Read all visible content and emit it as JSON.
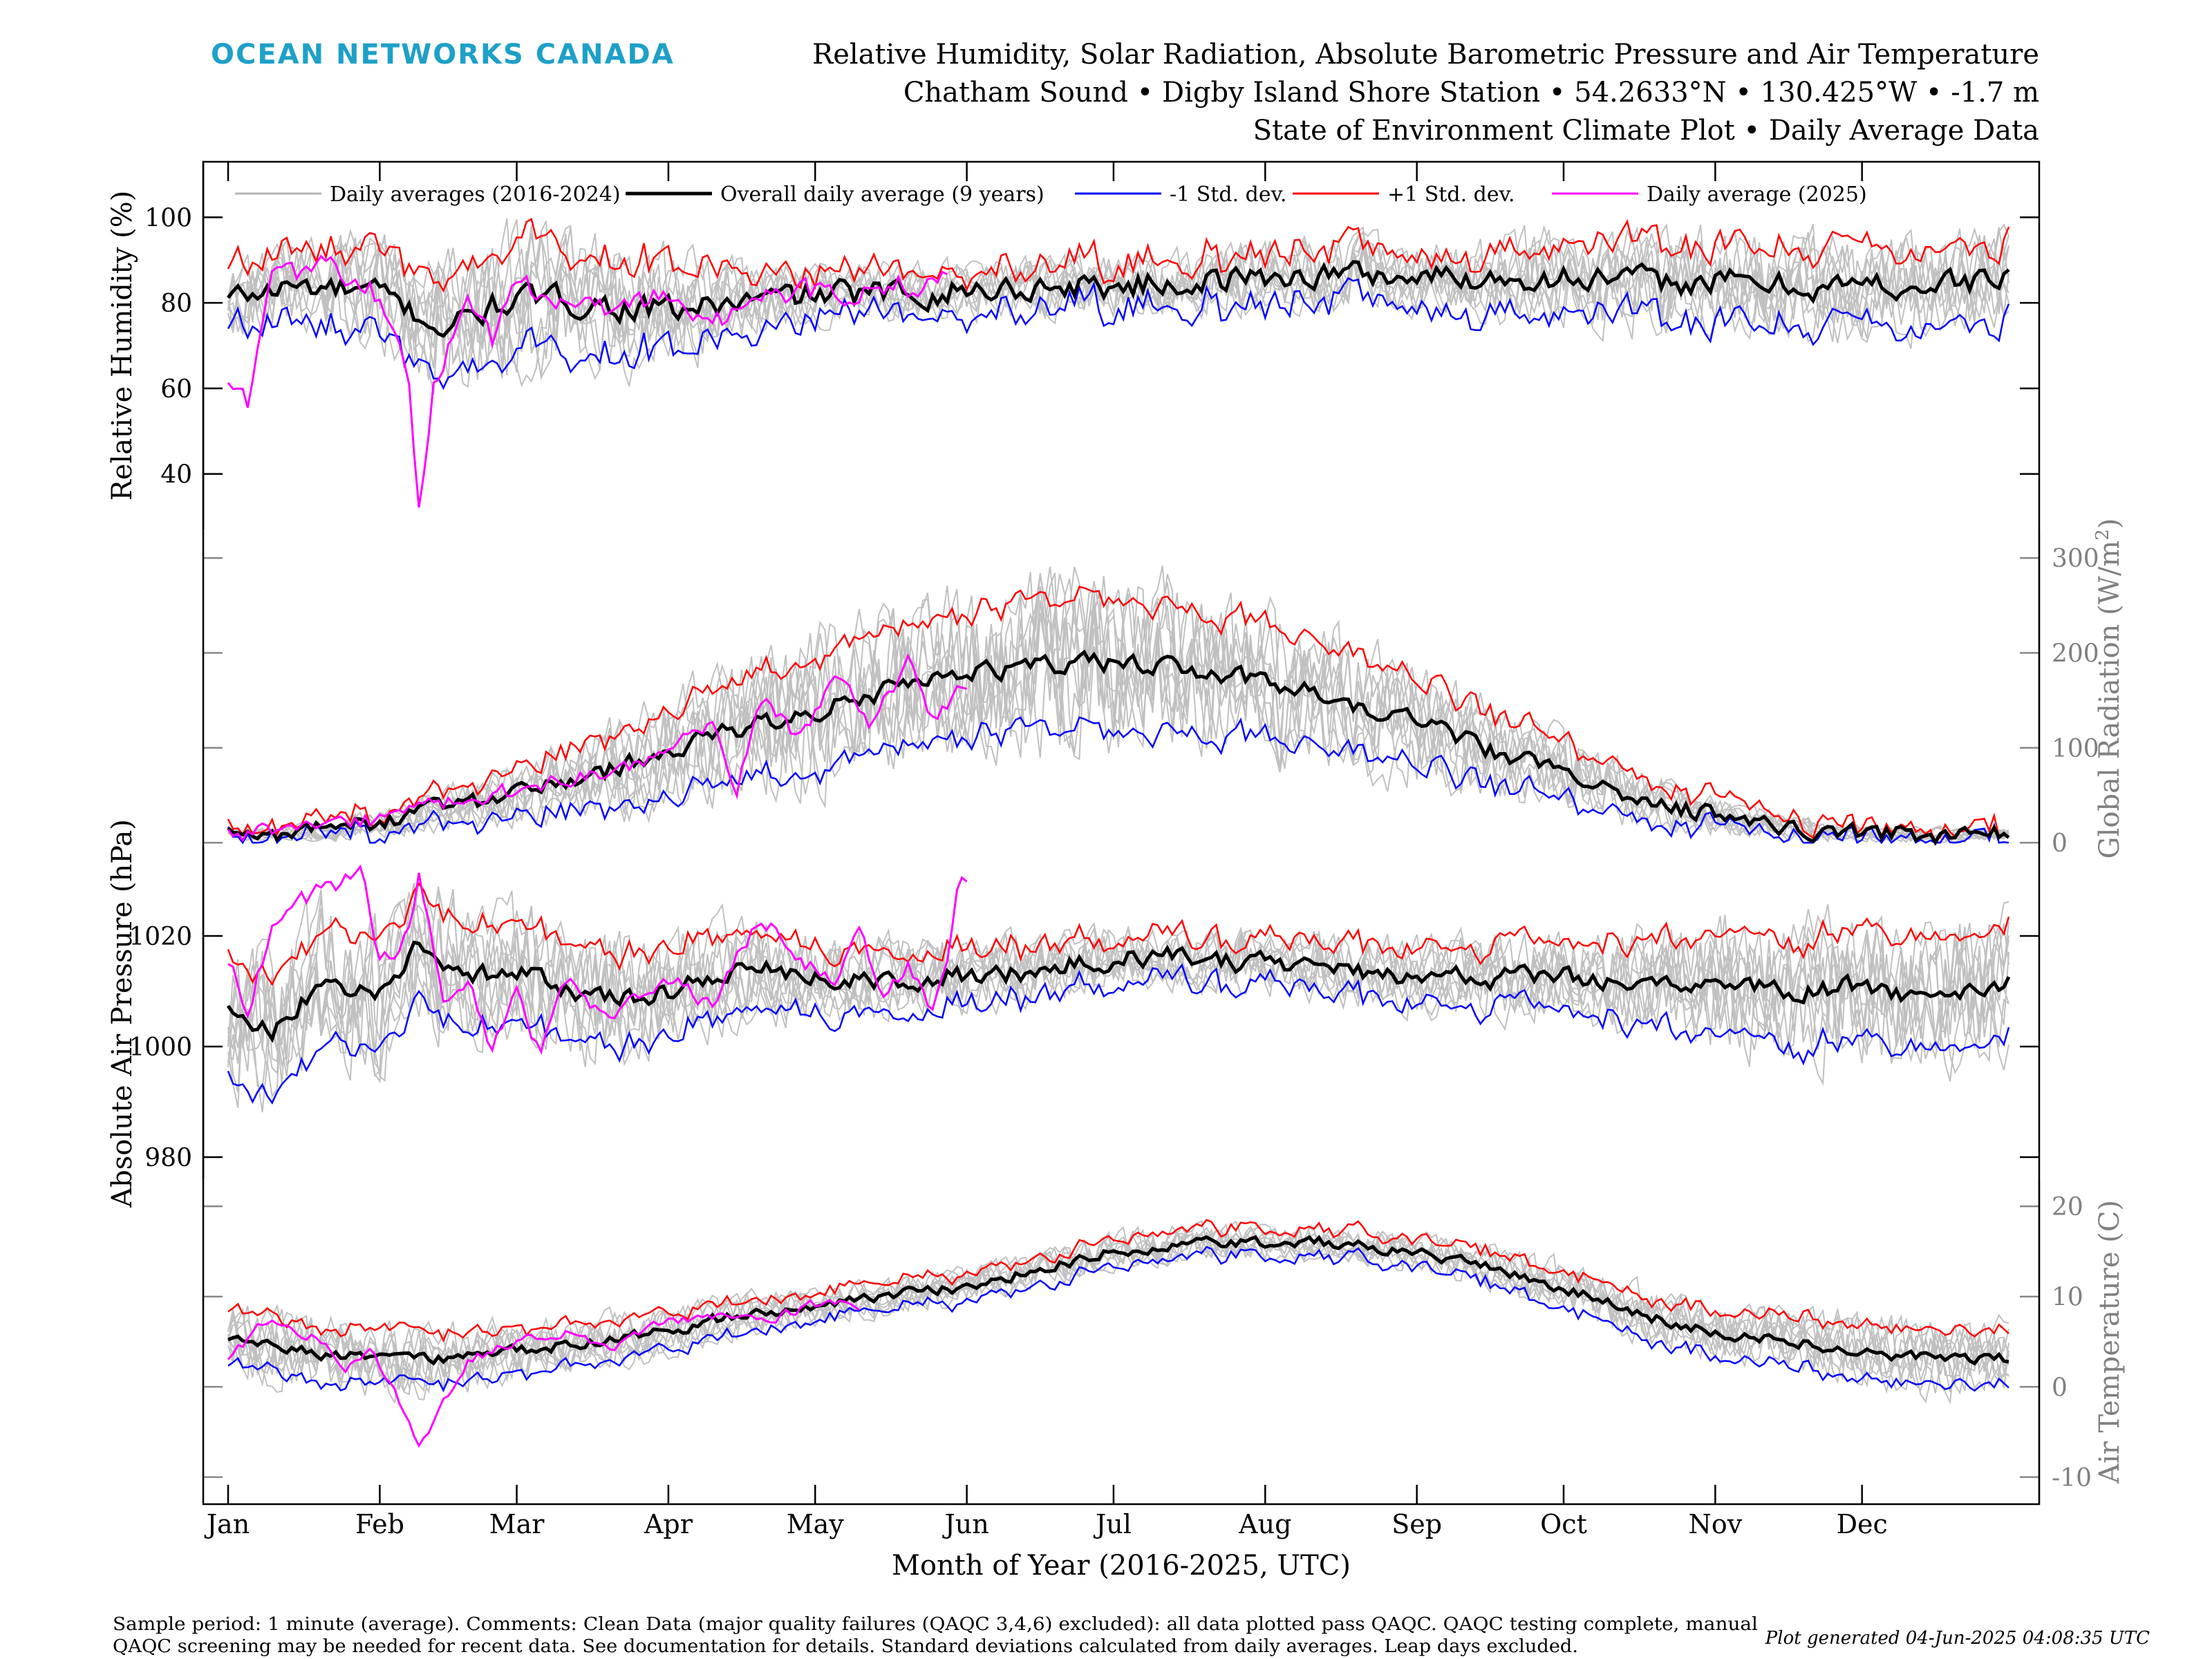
{
  "header": {
    "brand": "OCEAN NETWORKS CANADA",
    "brand_color": "#1ea0c8",
    "title_lines": [
      "Relative Humidity, Solar Radiation, Absolute Barometric Pressure and Air Temperature",
      "Chatham Sound • Digby Island Shore Station • 54.2633°N • 130.425°W • -1.7 m",
      "State of Environment Climate Plot • Daily Average Data"
    ]
  },
  "footer": {
    "note_lines": [
      "Sample period: 1 minute (average). Comments: Clean Data (major quality failures (QAQC 3,4,6) excluded): all data plotted pass QAQC. QAQC testing complete, manual",
      "QAQC screening may be needed for recent data. See documentation for details. Standard deviations calculated from daily averages. Leap days excluded."
    ],
    "generated": "Plot generated 04-Jun-2025 04:08:35 UTC"
  },
  "chart_data": {
    "type": "line",
    "xlabel": "Month of Year (2016-2025, UTC)",
    "x_ticks": [
      "Jan",
      "Feb",
      "Mar",
      "Apr",
      "May",
      "Jun",
      "Jul",
      "Aug",
      "Sep",
      "Oct",
      "Nov",
      "Dec"
    ],
    "x_tick_days": [
      1,
      32,
      60,
      91,
      121,
      152,
      182,
      213,
      244,
      274,
      305,
      335
    ],
    "xlim": [
      1,
      365
    ],
    "legend": {
      "placement": "top",
      "entries": [
        {
          "label": "Daily averages (2016-2024)",
          "color": "#b4b4b4"
        },
        {
          "label": "Overall daily average (9 years)",
          "color": "#000000"
        },
        {
          "label": "-1 Std. dev.",
          "color": "#0000ff"
        },
        {
          "label": "+1 Std. dev.",
          "color": "#ff0000"
        },
        {
          "label": "Daily average (2025)",
          "color": "#ff00ff"
        }
      ]
    },
    "panels": [
      {
        "name": "humidity",
        "ylabel": "Relative Humidity (%)",
        "axis_side": "left",
        "axis_color": "#000000",
        "y_ticks": [
          40,
          60,
          80,
          100
        ],
        "ylim": [
          27,
          113
        ],
        "mean_points": [
          [
            1,
            81
          ],
          [
            15,
            84
          ],
          [
            32,
            82
          ],
          [
            45,
            74
          ],
          [
            60,
            81
          ],
          [
            75,
            80
          ],
          [
            91,
            78
          ],
          [
            105,
            80
          ],
          [
            121,
            82
          ],
          [
            135,
            82
          ],
          [
            152,
            83
          ],
          [
            170,
            84
          ],
          [
            182,
            84
          ],
          [
            200,
            85
          ],
          [
            213,
            86
          ],
          [
            230,
            87
          ],
          [
            244,
            86
          ],
          [
            260,
            86
          ],
          [
            274,
            86
          ],
          [
            290,
            85
          ],
          [
            305,
            85
          ],
          [
            320,
            84
          ],
          [
            335,
            84
          ],
          [
            350,
            84
          ],
          [
            365,
            86
          ]
        ],
        "std_points": [
          [
            1,
            7
          ],
          [
            32,
            10
          ],
          [
            60,
            13
          ],
          [
            91,
            10
          ],
          [
            121,
            5
          ],
          [
            152,
            5
          ],
          [
            182,
            5
          ],
          [
            213,
            6
          ],
          [
            244,
            6
          ],
          [
            274,
            8
          ],
          [
            305,
            9
          ],
          [
            335,
            9
          ],
          [
            365,
            9
          ]
        ],
        "noise": 5,
        "current_year_points": [
          [
            1,
            62
          ],
          [
            5,
            55
          ],
          [
            10,
            85
          ],
          [
            20,
            88
          ],
          [
            30,
            85
          ],
          [
            35,
            75
          ],
          [
            38,
            58
          ],
          [
            40,
            33
          ],
          [
            43,
            60
          ],
          [
            50,
            82
          ],
          [
            55,
            72
          ],
          [
            60,
            85
          ],
          [
            70,
            80
          ],
          [
            80,
            78
          ],
          [
            90,
            82
          ],
          [
            95,
            78
          ],
          [
            100,
            75
          ],
          [
            110,
            82
          ],
          [
            120,
            82
          ],
          [
            135,
            84
          ],
          [
            148,
            85
          ]
        ],
        "gray_range": [
          27,
          103
        ]
      },
      {
        "name": "radiation",
        "ylabel": "Global Radiation (W/m²)",
        "axis_side": "right",
        "axis_color": "#808080",
        "y_ticks": [
          0,
          100,
          200,
          300
        ],
        "ylim": [
          -5,
          330
        ],
        "mean_points": [
          [
            1,
            8
          ],
          [
            15,
            10
          ],
          [
            32,
            20
          ],
          [
            45,
            35
          ],
          [
            60,
            50
          ],
          [
            75,
            70
          ],
          [
            91,
            95
          ],
          [
            105,
            120
          ],
          [
            121,
            140
          ],
          [
            135,
            160
          ],
          [
            152,
            180
          ],
          [
            167,
            185
          ],
          [
            182,
            190
          ],
          [
            197,
            185
          ],
          [
            213,
            170
          ],
          [
            228,
            150
          ],
          [
            244,
            125
          ],
          [
            258,
            100
          ],
          [
            266,
            85
          ],
          [
            274,
            80
          ],
          [
            290,
            45
          ],
          [
            305,
            28
          ],
          [
            320,
            15
          ],
          [
            335,
            10
          ],
          [
            350,
            8
          ],
          [
            365,
            9
          ]
        ],
        "std_points": [
          [
            1,
            4
          ],
          [
            32,
            10
          ],
          [
            60,
            25
          ],
          [
            91,
            45
          ],
          [
            121,
            60
          ],
          [
            152,
            65
          ],
          [
            182,
            70
          ],
          [
            213,
            60
          ],
          [
            244,
            45
          ],
          [
            274,
            30
          ],
          [
            305,
            15
          ],
          [
            335,
            6
          ],
          [
            365,
            5
          ]
        ],
        "noise": 16,
        "current_year_points": [
          [
            1,
            10
          ],
          [
            20,
            15
          ],
          [
            32,
            25
          ],
          [
            45,
            40
          ],
          [
            60,
            55
          ],
          [
            75,
            70
          ],
          [
            91,
            90
          ],
          [
            100,
            130
          ],
          [
            105,
            60
          ],
          [
            110,
            150
          ],
          [
            118,
            110
          ],
          [
            125,
            180
          ],
          [
            132,
            120
          ],
          [
            140,
            190
          ],
          [
            145,
            130
          ],
          [
            152,
            170
          ]
        ],
        "gray_range": [
          0,
          335
        ]
      },
      {
        "name": "pressure",
        "ylabel": "Absolute Air Pressure (hPa)",
        "axis_side": "left",
        "axis_color": "#000000",
        "y_ticks": [
          980,
          1000,
          1020
        ],
        "ylim": [
          976,
          1036
        ],
        "mean_points": [
          [
            1,
            1008
          ],
          [
            10,
            1003
          ],
          [
            20,
            1012
          ],
          [
            32,
            1010
          ],
          [
            40,
            1018
          ],
          [
            50,
            1012
          ],
          [
            60,
            1014
          ],
          [
            75,
            1008
          ],
          [
            91,
            1010
          ],
          [
            105,
            1014
          ],
          [
            121,
            1013
          ],
          [
            135,
            1012
          ],
          [
            152,
            1013
          ],
          [
            167,
            1014
          ],
          [
            182,
            1016
          ],
          [
            197,
            1016
          ],
          [
            213,
            1015
          ],
          [
            228,
            1014
          ],
          [
            244,
            1013
          ],
          [
            260,
            1012
          ],
          [
            274,
            1013
          ],
          [
            290,
            1012
          ],
          [
            305,
            1012
          ],
          [
            320,
            1010
          ],
          [
            335,
            1011
          ],
          [
            350,
            1008
          ],
          [
            365,
            1012
          ]
        ],
        "std_points": [
          [
            1,
            11
          ],
          [
            32,
            10
          ],
          [
            60,
            9
          ],
          [
            91,
            8
          ],
          [
            121,
            6
          ],
          [
            152,
            5
          ],
          [
            182,
            4
          ],
          [
            213,
            4
          ],
          [
            244,
            5
          ],
          [
            274,
            6
          ],
          [
            305,
            9
          ],
          [
            335,
            10
          ],
          [
            365,
            10
          ]
        ],
        "noise": 3,
        "current_year_points": [
          [
            1,
            1016
          ],
          [
            5,
            1007
          ],
          [
            10,
            1022
          ],
          [
            15,
            1026
          ],
          [
            20,
            1028
          ],
          [
            25,
            1030
          ],
          [
            28,
            1034
          ],
          [
            32,
            1015
          ],
          [
            38,
            1020
          ],
          [
            40,
            1032
          ],
          [
            45,
            1010
          ],
          [
            50,
            1012
          ],
          [
            55,
            1000
          ],
          [
            60,
            1010
          ],
          [
            65,
            998
          ],
          [
            70,
            1012
          ],
          [
            80,
            1005
          ],
          [
            90,
            1012
          ],
          [
            100,
            1008
          ],
          [
            105,
            1016
          ],
          [
            110,
            1024
          ],
          [
            118,
            1015
          ],
          [
            125,
            1012
          ],
          [
            130,
            1020
          ],
          [
            135,
            1008
          ],
          [
            140,
            1015
          ],
          [
            145,
            1005
          ],
          [
            148,
            1015
          ],
          [
            150,
            1028
          ],
          [
            152,
            1030
          ]
        ],
        "gray_range": [
          978,
          1030
        ]
      },
      {
        "name": "temperature",
        "ylabel": "Air Temperature (C)",
        "axis_side": "right",
        "axis_color": "#808080",
        "y_ticks": [
          -10,
          0,
          10,
          20
        ],
        "ylim": [
          -13,
          23
        ],
        "mean_points": [
          [
            1,
            5
          ],
          [
            15,
            4
          ],
          [
            32,
            3
          ],
          [
            45,
            3
          ],
          [
            60,
            4
          ],
          [
            75,
            5
          ],
          [
            91,
            6
          ],
          [
            105,
            8
          ],
          [
            121,
            9
          ],
          [
            135,
            10
          ],
          [
            152,
            11
          ],
          [
            167,
            13
          ],
          [
            182,
            15
          ],
          [
            197,
            16
          ],
          [
            213,
            16
          ],
          [
            228,
            16
          ],
          [
            244,
            15
          ],
          [
            260,
            13
          ],
          [
            274,
            11
          ],
          [
            290,
            8
          ],
          [
            305,
            6
          ],
          [
            320,
            5
          ],
          [
            335,
            4
          ],
          [
            350,
            3
          ],
          [
            365,
            3
          ]
        ],
        "std_points": [
          [
            1,
            3
          ],
          [
            32,
            3
          ],
          [
            60,
            2.5
          ],
          [
            91,
            2
          ],
          [
            121,
            1.5
          ],
          [
            152,
            1.5
          ],
          [
            182,
            1.5
          ],
          [
            213,
            1.5
          ],
          [
            244,
            1.5
          ],
          [
            274,
            2
          ],
          [
            305,
            2.5
          ],
          [
            335,
            3
          ],
          [
            365,
            3
          ]
        ],
        "noise": 1,
        "current_year_points": [
          [
            1,
            3
          ],
          [
            10,
            8
          ],
          [
            20,
            5
          ],
          [
            25,
            2
          ],
          [
            30,
            4
          ],
          [
            35,
            0
          ],
          [
            40,
            -7
          ],
          [
            45,
            -2
          ],
          [
            50,
            3
          ],
          [
            60,
            5
          ],
          [
            70,
            6
          ],
          [
            80,
            4
          ],
          [
            85,
            6
          ],
          [
            90,
            7
          ],
          [
            100,
            8
          ],
          [
            110,
            7
          ],
          [
            120,
            9
          ],
          [
            130,
            9
          ]
        ],
        "gray_range": [
          -12,
          21
        ]
      }
    ]
  }
}
